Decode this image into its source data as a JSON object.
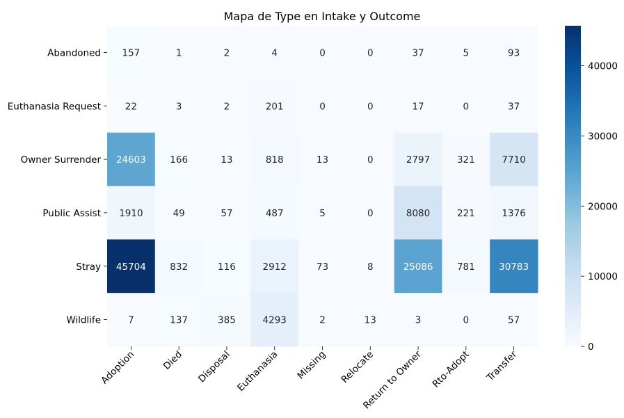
{
  "chart_data": {
    "type": "heatmap",
    "title": "Mapa de Type en Intake y Outcome",
    "xlabel": "",
    "ylabel": "",
    "x_categories": [
      "Adoption",
      "Died",
      "Disposal",
      "Euthanasia",
      "Missing",
      "Relocate",
      "Return to Owner",
      "Rto-Adopt",
      "Transfer"
    ],
    "y_categories": [
      "Abandoned",
      "Euthanasia Request",
      "Owner Surrender",
      "Public Assist",
      "Stray",
      "Wildlife"
    ],
    "values": [
      [
        157,
        1,
        2,
        4,
        0,
        0,
        37,
        5,
        93
      ],
      [
        22,
        3,
        2,
        201,
        0,
        0,
        17,
        0,
        37
      ],
      [
        24603,
        166,
        13,
        818,
        13,
        0,
        2797,
        321,
        7710
      ],
      [
        1910,
        49,
        57,
        487,
        5,
        0,
        8080,
        221,
        1376
      ],
      [
        45704,
        832,
        116,
        2912,
        73,
        8,
        25086,
        781,
        30783
      ],
      [
        7,
        137,
        385,
        4293,
        2,
        13,
        3,
        0,
        57
      ]
    ],
    "colorbar": {
      "colormap": "Blues",
      "min": 0,
      "max": 45704,
      "ticks": [
        0,
        10000,
        20000,
        30000,
        40000
      ]
    },
    "colors": [
      "#f7fbff",
      "#deebf7",
      "#c6dbef",
      "#9ecae1",
      "#6baed6",
      "#4292c6",
      "#2171b5",
      "#08519c",
      "#08306b"
    ]
  }
}
